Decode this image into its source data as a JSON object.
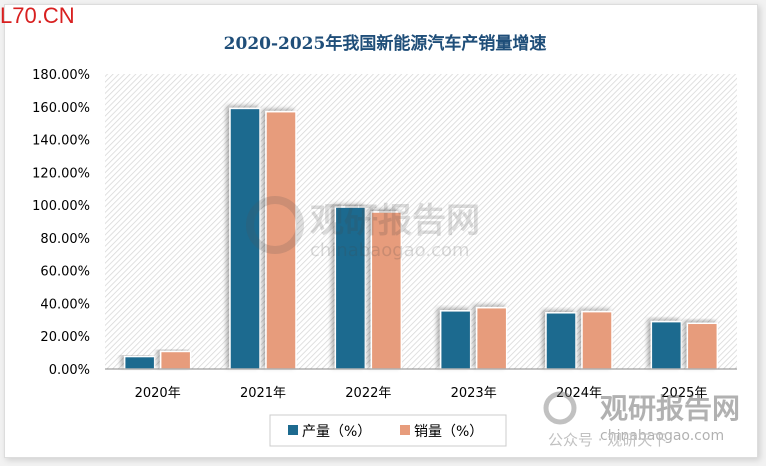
{
  "watermark": "L70.CN",
  "chart_data": {
    "type": "bar",
    "title": "2020-2025年我国新能源汽车产销量增速",
    "categories": [
      "2020年",
      "2021年",
      "2022年",
      "2023年",
      "2024年",
      "2025年"
    ],
    "series": [
      {
        "name": "产量（%）",
        "color": "#1d6a8f",
        "values": [
          7.6,
          159.0,
          98.8,
          35.5,
          34.3,
          28.9
        ]
      },
      {
        "name": "销量（%）",
        "color": "#e79c7c",
        "values": [
          10.7,
          157.0,
          95.8,
          37.4,
          35.0,
          27.9
        ]
      }
    ],
    "yticks": [
      "0.00%",
      "20.00%",
      "40.00%",
      "60.00%",
      "80.00%",
      "100.00%",
      "120.00%",
      "140.00%",
      "160.00%",
      "180.00%"
    ],
    "ylim": [
      0,
      180
    ],
    "grid": false,
    "legend": "bottom",
    "background_watermark": "观研报告网 chinabaogao.com",
    "footer_watermark": "公众号 · 观研天下"
  }
}
